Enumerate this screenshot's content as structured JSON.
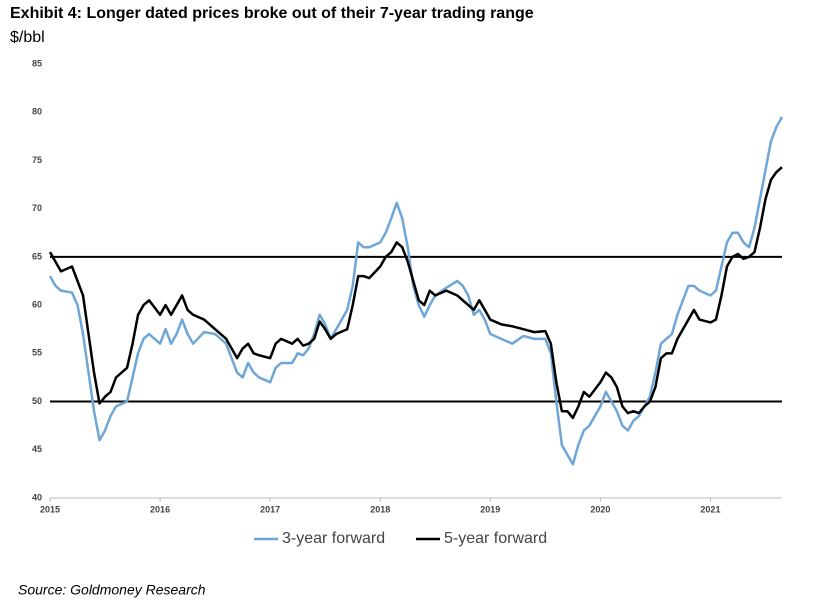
{
  "chart_data": {
    "type": "line",
    "title": "Exhibit 4: Longer dated prices broke out of their 7-year trading range",
    "subtitle": "$/bbl",
    "source": "Source: Goldmoney Research",
    "x": [
      2015,
      2015.05,
      2015.1,
      2015.2,
      2015.25,
      2015.3,
      2015.35,
      2015.4,
      2015.45,
      2015.5,
      2015.55,
      2015.6,
      2015.7,
      2015.75,
      2015.8,
      2015.85,
      2015.9,
      2016,
      2016.05,
      2016.1,
      2016.15,
      2016.2,
      2016.25,
      2016.3,
      2016.4,
      2016.5,
      2016.6,
      2016.7,
      2016.75,
      2016.8,
      2016.85,
      2016.9,
      2017,
      2017.05,
      2017.1,
      2017.2,
      2017.25,
      2017.3,
      2017.35,
      2017.4,
      2017.45,
      2017.5,
      2017.55,
      2017.6,
      2017.7,
      2017.75,
      2017.8,
      2017.85,
      2017.9,
      2018,
      2018.05,
      2018.1,
      2018.15,
      2018.2,
      2018.25,
      2018.3,
      2018.35,
      2018.4,
      2018.45,
      2018.5,
      2018.6,
      2018.7,
      2018.75,
      2018.8,
      2018.85,
      2018.9,
      2018.95,
      2019,
      2019.1,
      2019.2,
      2019.3,
      2019.4,
      2019.5,
      2019.55,
      2019.6,
      2019.65,
      2019.7,
      2019.75,
      2019.8,
      2019.85,
      2019.9,
      2020,
      2020.05,
      2020.1,
      2020.15,
      2020.2,
      2020.25,
      2020.3,
      2020.35,
      2020.4,
      2020.45,
      2020.5,
      2020.55,
      2020.6,
      2020.65,
      2020.7,
      2020.75,
      2020.8,
      2020.85,
      2020.9,
      2021,
      2021.05,
      2021.1,
      2021.15,
      2021.2,
      2021.25,
      2021.3,
      2021.35,
      2021.4,
      2021.45,
      2021.5,
      2021.55,
      2021.6,
      2021.65
    ],
    "series": [
      {
        "name": "3-year forward",
        "color": "#6ea6d8",
        "values": [
          63,
          62,
          61.5,
          61.3,
          60,
          57,
          53,
          49,
          46,
          47,
          48.5,
          49.5,
          50,
          52.5,
          55,
          56.5,
          57,
          56,
          57.5,
          56,
          57,
          58.5,
          57,
          56,
          57.2,
          57,
          56,
          53,
          52.5,
          54,
          53,
          52.5,
          52,
          53.5,
          54,
          54,
          55,
          54.8,
          55.5,
          57,
          59,
          58,
          56.5,
          57.5,
          59.5,
          62,
          66.5,
          66,
          66,
          66.5,
          67.5,
          69,
          70.6,
          69,
          66,
          62,
          60,
          58.8,
          60,
          61,
          61.8,
          62.5,
          62,
          61,
          59,
          59.5,
          58.5,
          57,
          56.5,
          56,
          56.8,
          56.5,
          56.5,
          55,
          50,
          45.5,
          44.5,
          43.5,
          45.5,
          47,
          47.5,
          49.5,
          51,
          50,
          49,
          47.5,
          47,
          48,
          48.5,
          49.5,
          50.5,
          53,
          56,
          56.5,
          57,
          59,
          60.5,
          62,
          62,
          61.5,
          61,
          61.5,
          64,
          66.5,
          67.5,
          67.5,
          66.5,
          66,
          68,
          71,
          74,
          77,
          78.5,
          79.5
        ]
      },
      {
        "name": "5-year forward",
        "color": "#000000",
        "values": [
          65.5,
          64.5,
          63.5,
          64,
          62.5,
          61,
          57,
          53,
          49.8,
          50.5,
          51,
          52.5,
          53.5,
          56,
          59,
          60,
          60.5,
          59,
          60,
          59,
          60,
          61,
          59.5,
          59,
          58.5,
          57.5,
          56.5,
          54.5,
          55.5,
          56,
          55,
          54.8,
          54.5,
          56,
          56.5,
          56,
          56.5,
          55.8,
          56,
          56.5,
          58.3,
          57.5,
          56.5,
          57,
          57.5,
          60,
          63,
          63,
          62.8,
          64,
          65,
          65.5,
          66.5,
          66,
          64.5,
          62.5,
          60.5,
          60,
          61.5,
          61,
          61.5,
          61,
          60.5,
          60,
          59.5,
          60.5,
          59.5,
          58.5,
          58,
          57.8,
          57.5,
          57.2,
          57.3,
          56,
          52,
          49,
          49,
          48.3,
          49.5,
          51,
          50.5,
          52,
          53,
          52.5,
          51.5,
          49.5,
          48.8,
          49,
          48.8,
          49.5,
          50,
          51.5,
          54.5,
          55,
          55,
          56.5,
          57.5,
          58.5,
          59.5,
          58.5,
          58.2,
          58.5,
          61,
          64,
          65,
          65.3,
          64.8,
          65,
          65.5,
          68,
          71,
          73,
          73.8,
          74.3
        ]
      }
    ],
    "hlines": [
      65,
      50
    ],
    "xlim": [
      2015,
      2021.65
    ],
    "xticks": [
      2015,
      2016,
      2017,
      2018,
      2019,
      2020,
      2021
    ],
    "ylim": [
      40,
      85
    ],
    "yticks": [
      40,
      45,
      50,
      55,
      60,
      65,
      70,
      75,
      80,
      85
    ],
    "legend": "bottom"
  }
}
